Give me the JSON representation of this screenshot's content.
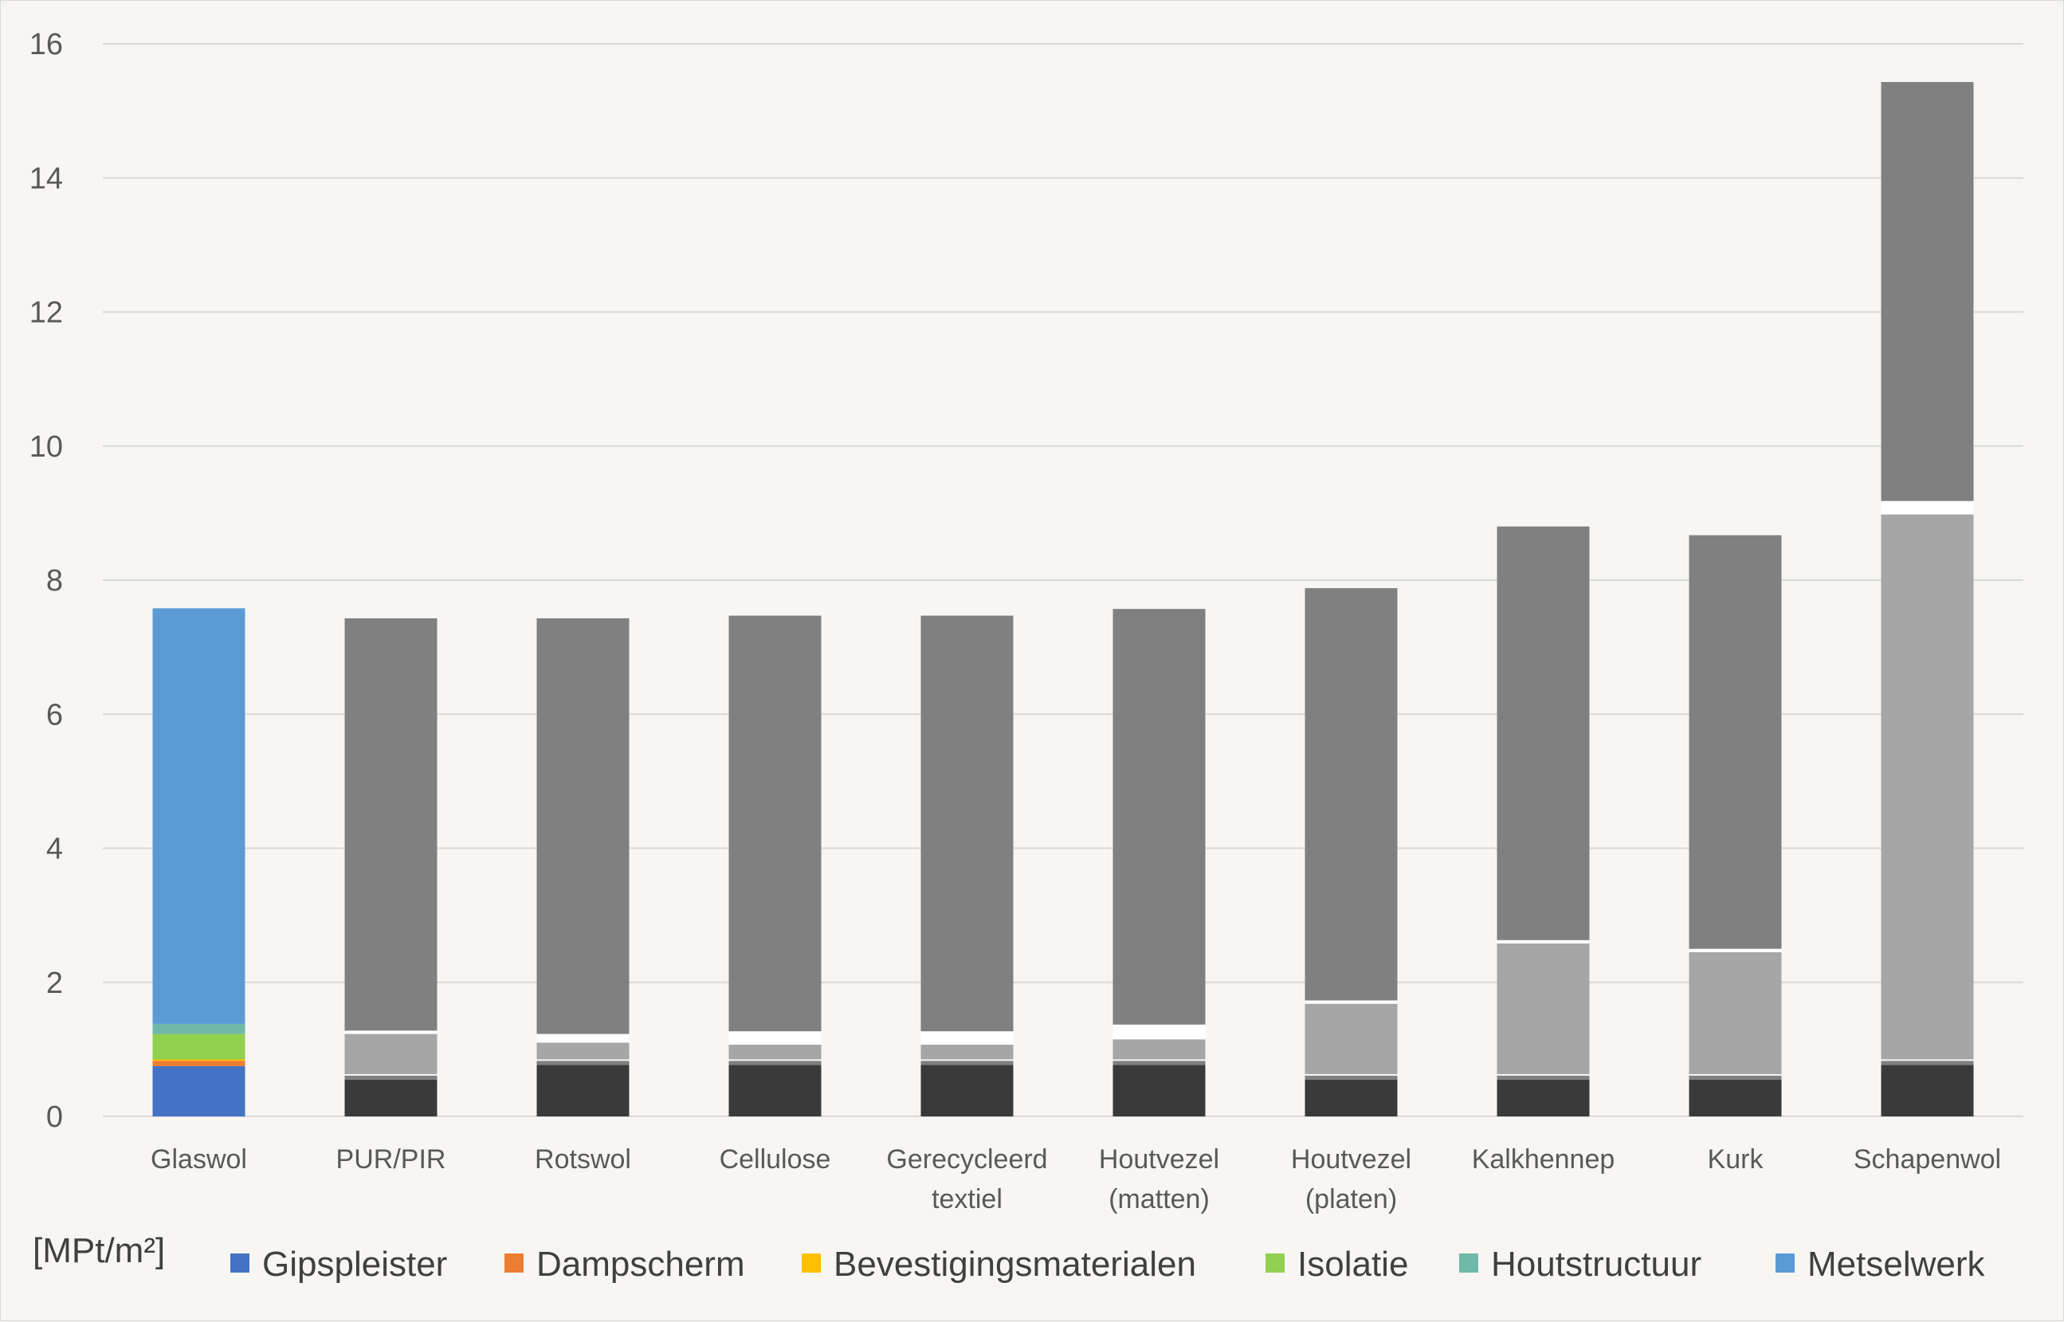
{
  "chart_data": {
    "type": "bar",
    "stacked": true,
    "title": "",
    "unit_label": "[MPt/m²]",
    "ylim": [
      0,
      16
    ],
    "yticks": [
      0,
      2,
      4,
      6,
      8,
      10,
      12,
      14,
      16
    ],
    "grid": true,
    "legend_position": "bottom",
    "categories": [
      [
        "Glaswol"
      ],
      [
        "PUR/PIR"
      ],
      [
        "Rotswol"
      ],
      [
        "Cellulose"
      ],
      [
        "Gerecycleerd",
        "textiel"
      ],
      [
        "Houtvezel",
        "(matten)"
      ],
      [
        "Houtvezel",
        "(platen)"
      ],
      [
        "Kalkhennep"
      ],
      [
        "Kurk"
      ],
      [
        "Schapenwol"
      ]
    ],
    "series": [
      {
        "name": "Gipspleister",
        "color": "#4472c4",
        "values": [
          0.75,
          0.55,
          0.77,
          0.77,
          0.77,
          0.77,
          0.55,
          0.55,
          0.55,
          0.77
        ]
      },
      {
        "name": "Dampscherm",
        "color": "#ed7d31",
        "values": [
          0.08,
          0.06,
          0.06,
          0.06,
          0.06,
          0.06,
          0.06,
          0.06,
          0.06,
          0.06
        ]
      },
      {
        "name": "Bevestigingsmaterialen",
        "color": "#ffc000",
        "values": [
          0.02,
          0.02,
          0.02,
          0.02,
          0.02,
          0.02,
          0.02,
          0.02,
          0.02,
          0.02
        ]
      },
      {
        "name": "Isolatie",
        "color": "#92d050",
        "values": [
          0.38,
          0.6,
          0.25,
          0.22,
          0.22,
          0.3,
          1.05,
          1.95,
          1.82,
          8.13
        ]
      },
      {
        "name": "Houtstructuur",
        "color": "#70b8a8",
        "values": [
          0.15,
          0.05,
          0.13,
          0.2,
          0.2,
          0.22,
          0.05,
          0.05,
          0.05,
          0.2
        ]
      },
      {
        "name": "Metselwerk",
        "color": "#5b9bd5",
        "values": [
          6.2,
          6.15,
          6.2,
          6.2,
          6.2,
          6.2,
          6.15,
          6.17,
          6.17,
          6.25
        ]
      }
    ],
    "mark_colors": [
      "#3a3a3a",
      "#808080",
      "#ffffff",
      "#a6a6a6",
      "#ffffff",
      "#808080"
    ]
  }
}
